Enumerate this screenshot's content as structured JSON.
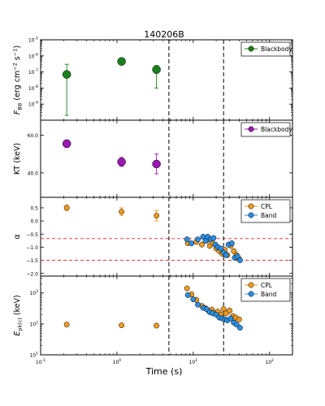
{
  "chart_data": {
    "type": "scatter",
    "title": "140206B",
    "xlabel": "Time (s)",
    "xscale": "log",
    "xlim": [
      0.1,
      200
    ],
    "x_ticks": [
      {
        "v": 0.1,
        "base": "10",
        "exp": "-1"
      },
      {
        "v": 1,
        "base": "10",
        "exp": "0"
      },
      {
        "v": 10,
        "base": "10",
        "exp": "1"
      },
      {
        "v": 100,
        "base": "10",
        "exp": "2"
      }
    ],
    "vlines": [
      4.8,
      25
    ],
    "panels": [
      {
        "id": "fbb",
        "ylabel_parts": [
          {
            "t": "F",
            "style": "italic"
          },
          {
            "t": "BB",
            "shift": "sub"
          },
          {
            "t": " (erg cm"
          },
          {
            "t": "−2",
            "shift": "super"
          },
          {
            "t": " s"
          },
          {
            "t": "−1",
            "shift": "super"
          },
          {
            "t": ")"
          }
        ],
        "yscale": "log",
        "ylim": [
          1e-10,
          1e-05
        ],
        "y_ticks": [
          {
            "v": 1e-09,
            "base": "10",
            "exp": "-9"
          },
          {
            "v": 1e-08,
            "base": "10",
            "exp": "-8"
          },
          {
            "v": 1e-07,
            "base": "10",
            "exp": "-7"
          },
          {
            "v": 1e-06,
            "base": "10",
            "exp": "-6"
          },
          {
            "v": 1e-05,
            "base": "10",
            "exp": "-5"
          }
        ],
        "legend": {
          "position": "top-right",
          "entries": [
            {
              "name": "Blackbody",
              "color": "#1a7f1a"
            }
          ]
        },
        "series": [
          {
            "name": "Blackbody",
            "color": "#1a7f1a",
            "marker": "circle",
            "size": 5,
            "points": [
              {
                "x": 0.22,
                "y": 7e-08,
                "lo": 2e-10,
                "hi": 3e-07
              },
              {
                "x": 1.15,
                "y": 4.5e-07
              },
              {
                "x": 3.3,
                "y": 1.4e-07,
                "lo": 1e-08,
                "hi": 2.5e-07
              }
            ]
          }
        ]
      },
      {
        "id": "kt",
        "ylabel_parts": [
          {
            "t": "KT (keV)"
          }
        ],
        "yscale": "linear",
        "ylim": [
          27,
          68
        ],
        "y_ticks": [
          {
            "v": 40,
            "label": "40.0"
          },
          {
            "v": 60,
            "label": "60.0"
          }
        ],
        "legend": {
          "position": "top-right",
          "entries": [
            {
              "name": "Blackbody",
              "color": "#9b19b0"
            }
          ]
        },
        "series": [
          {
            "name": "Blackbody",
            "color": "#9b19b0",
            "marker": "circle",
            "size": 5,
            "points": [
              {
                "x": 0.22,
                "y": 55.5,
                "lo": 53.5,
                "hi": 57.5
              },
              {
                "x": 1.15,
                "y": 45.8,
                "lo": 43.5,
                "hi": 48.2
              },
              {
                "x": 3.3,
                "y": 44.7,
                "lo": 39.5,
                "hi": 50
              }
            ]
          }
        ]
      },
      {
        "id": "alpha",
        "ylabel_parts": [
          {
            "t": "α"
          }
        ],
        "yscale": "linear",
        "ylim": [
          -2.1,
          0.9
        ],
        "y_ticks": [
          {
            "v": 0.5,
            "label": "0.5"
          },
          {
            "v": 0.0,
            "label": "0.0"
          },
          {
            "v": -0.5,
            "label": "−0.5"
          },
          {
            "v": -1.0,
            "label": "−1.0"
          },
          {
            "v": -1.5,
            "label": "−1.5"
          },
          {
            "v": -2.0,
            "label": "−2.0"
          }
        ],
        "hlines": [
          -0.67,
          -1.5
        ],
        "legend": {
          "position": "top-right",
          "entries": [
            {
              "name": "CPL",
              "color": "#f39a1e"
            },
            {
              "name": "Band",
              "color": "#2b8fe3"
            }
          ]
        },
        "series": [
          {
            "name": "CPL",
            "color": "#f39a1e",
            "marker": "circle",
            "size": 3.2,
            "points": [
              {
                "x": 0.22,
                "y": 0.5,
                "lo": 0.4,
                "hi": 0.6
              },
              {
                "x": 1.15,
                "y": 0.35,
                "lo": 0.2,
                "hi": 0.5
              },
              {
                "x": 3.3,
                "y": 0.2,
                "lo": 0.0,
                "hi": 0.4
              },
              {
                "x": 8.5,
                "y": -0.85
              },
              {
                "x": 11,
                "y": -0.8
              },
              {
                "x": 13,
                "y": -0.9
              },
              {
                "x": 15,
                "y": -0.75
              },
              {
                "x": 16.5,
                "y": -0.95
              },
              {
                "x": 18,
                "y": -0.85
              },
              {
                "x": 20,
                "y": -1.05
              },
              {
                "x": 22,
                "y": -1.15
              },
              {
                "x": 24,
                "y": -1.25
              },
              {
                "x": 26,
                "y": -1.1
              },
              {
                "x": 28,
                "y": -1.3
              },
              {
                "x": 31,
                "y": -0.95
              },
              {
                "x": 34,
                "y": -1.15
              },
              {
                "x": 37,
                "y": -1.3
              },
              {
                "x": 40,
                "y": -1.45
              }
            ]
          },
          {
            "name": "Band",
            "color": "#2b8fe3",
            "marker": "circle",
            "size": 3.2,
            "points": [
              {
                "x": 8.3,
                "y": -0.7
              },
              {
                "x": 9.5,
                "y": -0.85
              },
              {
                "x": 11.5,
                "y": -0.7
              },
              {
                "x": 13.5,
                "y": -0.6
              },
              {
                "x": 14.5,
                "y": -0.75
              },
              {
                "x": 15.5,
                "y": -0.6
              },
              {
                "x": 17,
                "y": -0.7
              },
              {
                "x": 18.5,
                "y": -0.65
              },
              {
                "x": 19.5,
                "y": -0.9
              },
              {
                "x": 21,
                "y": -1.0
              },
              {
                "x": 23,
                "y": -1.05
              },
              {
                "x": 25,
                "y": -1.2
              },
              {
                "x": 27,
                "y": -1.3
              },
              {
                "x": 29,
                "y": -0.9
              },
              {
                "x": 32,
                "y": -0.85
              },
              {
                "x": 35,
                "y": -1.4
              },
              {
                "x": 38,
                "y": -1.35
              },
              {
                "x": 41,
                "y": -1.5
              }
            ]
          }
        ]
      },
      {
        "id": "epk",
        "ylabel_parts": [
          {
            "t": "E",
            "style": "italic"
          },
          {
            "t": "pk(c)",
            "shift": "sub"
          },
          {
            "t": " (keV)"
          }
        ],
        "yscale": "log",
        "ylim": [
          10,
          3500
        ],
        "y_ticks": [
          {
            "v": 10,
            "base": "10",
            "exp": "1"
          },
          {
            "v": 100,
            "base": "10",
            "exp": "2"
          },
          {
            "v": 1000,
            "base": "10",
            "exp": "3"
          }
        ],
        "legend": {
          "position": "top-right",
          "entries": [
            {
              "name": "CPL",
              "color": "#f39a1e"
            },
            {
              "name": "Band",
              "color": "#2b8fe3"
            }
          ]
        },
        "series": [
          {
            "name": "CPL",
            "color": "#f39a1e",
            "marker": "circle",
            "size": 3.2,
            "points": [
              {
                "x": 0.22,
                "y": 95
              },
              {
                "x": 1.15,
                "y": 90
              },
              {
                "x": 3.3,
                "y": 88
              },
              {
                "x": 8.3,
                "y": 1400
              },
              {
                "x": 9.5,
                "y": 900
              },
              {
                "x": 11,
                "y": 600
              },
              {
                "x": 13,
                "y": 380
              },
              {
                "x": 14.5,
                "y": 320
              },
              {
                "x": 16,
                "y": 260
              },
              {
                "x": 17.5,
                "y": 290
              },
              {
                "x": 19,
                "y": 230
              },
              {
                "x": 21,
                "y": 250
              },
              {
                "x": 23,
                "y": 200
              },
              {
                "x": 25,
                "y": 300
              },
              {
                "x": 27,
                "y": 220
              },
              {
                "x": 30,
                "y": 270
              },
              {
                "x": 33,
                "y": 180
              },
              {
                "x": 36,
                "y": 160
              },
              {
                "x": 40,
                "y": 140
              }
            ]
          },
          {
            "name": "Band",
            "color": "#2b8fe3",
            "marker": "circle",
            "size": 3.2,
            "points": [
              {
                "x": 8.5,
                "y": 850
              },
              {
                "x": 10,
                "y": 620
              },
              {
                "x": 11.5,
                "y": 420
              },
              {
                "x": 13.5,
                "y": 330
              },
              {
                "x": 15,
                "y": 300
              },
              {
                "x": 16.5,
                "y": 240
              },
              {
                "x": 18,
                "y": 220
              },
              {
                "x": 20,
                "y": 200
              },
              {
                "x": 22,
                "y": 160
              },
              {
                "x": 24,
                "y": 150
              },
              {
                "x": 26,
                "y": 140
              },
              {
                "x": 28,
                "y": 130
              },
              {
                "x": 31,
                "y": 150
              },
              {
                "x": 34,
                "y": 110
              },
              {
                "x": 37,
                "y": 95
              },
              {
                "x": 41,
                "y": 75
              }
            ]
          }
        ]
      }
    ]
  }
}
